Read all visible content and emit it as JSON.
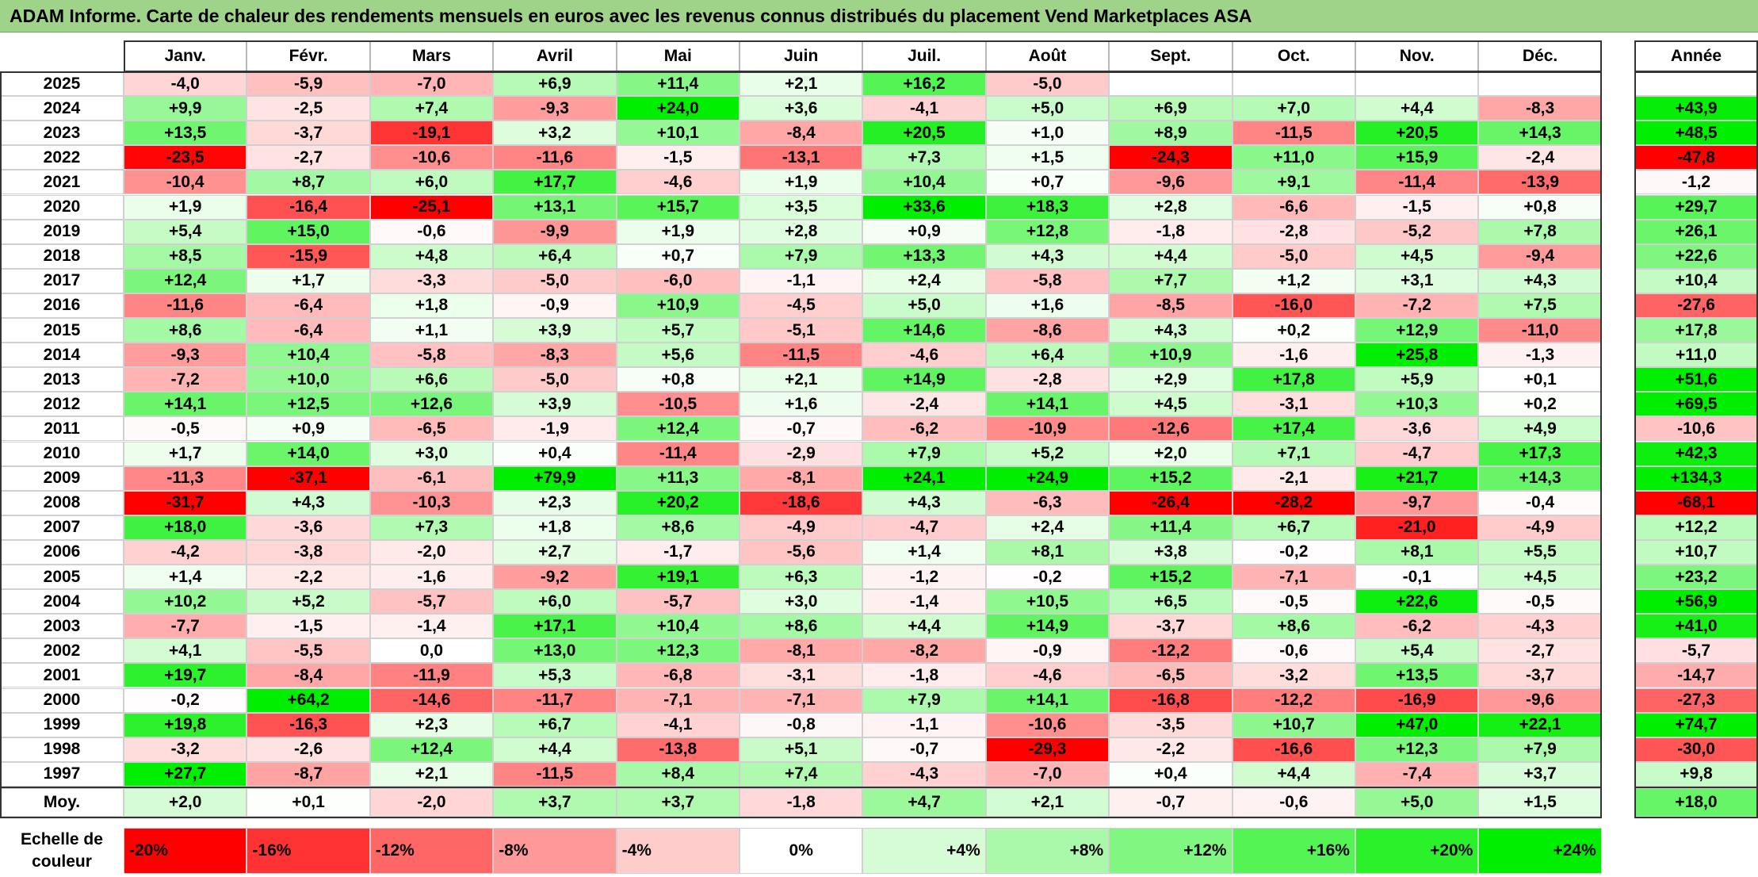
{
  "title": "ADAM Informe. Carte de chaleur des rendements mensuels en euros avec les revenus connus distribués du placement Vend Marketplaces ASA",
  "chart_data": {
    "type": "heatmap",
    "title": "ADAM Informe. Carte de chaleur des rendements mensuels en euros avec les revenus connus distribués du placement Vend Marketplaces ASA",
    "months": [
      "Janv.",
      "Févr.",
      "Mars",
      "Avril",
      "Mai",
      "Juin",
      "Juil.",
      "Août",
      "Sept.",
      "Oct.",
      "Nov.",
      "Déc."
    ],
    "year_column_label": "Année",
    "rows": [
      {
        "year": "2025",
        "values": [
          "-4,0",
          "-5,9",
          "-7,0",
          "+6,9",
          "+11,4",
          "+2,1",
          "+16,2",
          "-5,0",
          "",
          "",
          "",
          ""
        ],
        "annual": ""
      },
      {
        "year": "2024",
        "values": [
          "+9,9",
          "-2,5",
          "+7,4",
          "-9,3",
          "+24,0",
          "+3,6",
          "-4,1",
          "+5,0",
          "+6,9",
          "+7,0",
          "+4,4",
          "-8,3"
        ],
        "annual": "+43,9"
      },
      {
        "year": "2023",
        "values": [
          "+13,5",
          "-3,7",
          "-19,1",
          "+3,2",
          "+10,1",
          "-8,4",
          "+20,5",
          "+1,0",
          "+8,9",
          "-11,5",
          "+20,5",
          "+14,3"
        ],
        "annual": "+48,5"
      },
      {
        "year": "2022",
        "values": [
          "-23,5",
          "-2,7",
          "-10,6",
          "-11,6",
          "-1,5",
          "-13,1",
          "+7,3",
          "+1,5",
          "-24,3",
          "+11,0",
          "+15,9",
          "-2,4"
        ],
        "annual": "-47,8"
      },
      {
        "year": "2021",
        "values": [
          "-10,4",
          "+8,7",
          "+6,0",
          "+17,7",
          "-4,6",
          "+1,9",
          "+10,4",
          "+0,7",
          "-9,6",
          "+9,1",
          "-11,4",
          "-13,9"
        ],
        "annual": "-1,2"
      },
      {
        "year": "2020",
        "values": [
          "+1,9",
          "-16,4",
          "-25,1",
          "+13,1",
          "+15,7",
          "+3,5",
          "+33,6",
          "+18,3",
          "+2,8",
          "-6,6",
          "-1,5",
          "+0,8"
        ],
        "annual": "+29,7"
      },
      {
        "year": "2019",
        "values": [
          "+5,4",
          "+15,0",
          "-0,6",
          "-9,9",
          "+1,9",
          "+2,8",
          "+0,9",
          "+12,8",
          "-1,8",
          "-2,8",
          "-5,2",
          "+7,8"
        ],
        "annual": "+26,1"
      },
      {
        "year": "2018",
        "values": [
          "+8,5",
          "-15,9",
          "+4,8",
          "+6,4",
          "+0,7",
          "+7,9",
          "+13,3",
          "+4,3",
          "+4,4",
          "-5,0",
          "+4,5",
          "-9,4"
        ],
        "annual": "+22,6"
      },
      {
        "year": "2017",
        "values": [
          "+12,4",
          "+1,7",
          "-3,3",
          "-5,0",
          "-6,0",
          "-1,1",
          "+2,4",
          "-5,8",
          "+7,7",
          "+1,2",
          "+3,1",
          "+4,3"
        ],
        "annual": "+10,4"
      },
      {
        "year": "2016",
        "values": [
          "-11,6",
          "-6,4",
          "+1,8",
          "-0,9",
          "+10,9",
          "-4,5",
          "+5,0",
          "+1,6",
          "-8,5",
          "-16,0",
          "-7,2",
          "+7,5"
        ],
        "annual": "-27,6"
      },
      {
        "year": "2015",
        "values": [
          "+8,6",
          "-6,4",
          "+1,1",
          "+3,9",
          "+5,7",
          "-5,1",
          "+14,6",
          "-8,6",
          "+4,3",
          "+0,2",
          "+12,9",
          "-11,0"
        ],
        "annual": "+17,8"
      },
      {
        "year": "2014",
        "values": [
          "-9,3",
          "+10,4",
          "-5,8",
          "-8,3",
          "+5,6",
          "-11,5",
          "-4,6",
          "+6,4",
          "+10,9",
          "-1,6",
          "+25,8",
          "-1,3"
        ],
        "annual": "+11,0"
      },
      {
        "year": "2013",
        "values": [
          "-7,2",
          "+10,0",
          "+6,6",
          "-5,0",
          "+0,8",
          "+2,1",
          "+14,9",
          "-2,8",
          "+2,9",
          "+17,8",
          "+5,9",
          "+0,1"
        ],
        "annual": "+51,6"
      },
      {
        "year": "2012",
        "values": [
          "+14,1",
          "+12,5",
          "+12,6",
          "+3,9",
          "-10,5",
          "+1,6",
          "-2,4",
          "+14,1",
          "+4,5",
          "-3,1",
          "+10,3",
          "+0,2"
        ],
        "annual": "+69,5"
      },
      {
        "year": "2011",
        "values": [
          "-0,5",
          "+0,9",
          "-6,5",
          "-1,9",
          "+12,4",
          "-0,7",
          "-6,2",
          "-10,9",
          "-12,6",
          "+17,4",
          "-3,6",
          "+4,9"
        ],
        "annual": "-10,6"
      },
      {
        "year": "2010",
        "values": [
          "+1,7",
          "+14,0",
          "+3,0",
          "+0,4",
          "-11,4",
          "-2,9",
          "+7,9",
          "+5,2",
          "+2,0",
          "+7,1",
          "-4,7",
          "+17,3"
        ],
        "annual": "+42,3"
      },
      {
        "year": "2009",
        "values": [
          "-11,3",
          "-37,1",
          "-6,1",
          "+79,9",
          "+11,3",
          "-8,1",
          "+24,1",
          "+24,9",
          "+15,2",
          "-2,1",
          "+21,7",
          "+14,3"
        ],
        "annual": "+134,3"
      },
      {
        "year": "2008",
        "values": [
          "-31,7",
          "+4,3",
          "-10,3",
          "+2,3",
          "+20,2",
          "-18,6",
          "+4,3",
          "-6,3",
          "-26,4",
          "-28,2",
          "-9,7",
          "-0,4"
        ],
        "annual": "-68,1"
      },
      {
        "year": "2007",
        "values": [
          "+18,0",
          "-3,6",
          "+7,3",
          "+1,8",
          "+8,6",
          "-4,9",
          "-4,7",
          "+2,4",
          "+11,4",
          "+6,7",
          "-21,0",
          "-4,9"
        ],
        "annual": "+12,2"
      },
      {
        "year": "2006",
        "values": [
          "-4,2",
          "-3,8",
          "-2,0",
          "+2,7",
          "-1,7",
          "-5,6",
          "+1,4",
          "+8,1",
          "+3,8",
          "-0,2",
          "+8,1",
          "+5,5"
        ],
        "annual": "+10,7"
      },
      {
        "year": "2005",
        "values": [
          "+1,4",
          "-2,2",
          "-1,6",
          "-9,2",
          "+19,1",
          "+6,3",
          "-1,2",
          "-0,2",
          "+15,2",
          "-7,1",
          "-0,1",
          "+4,5"
        ],
        "annual": "+23,2"
      },
      {
        "year": "2004",
        "values": [
          "+10,2",
          "+5,2",
          "-5,7",
          "+6,0",
          "-5,7",
          "+3,0",
          "-1,4",
          "+10,5",
          "+6,5",
          "-0,5",
          "+22,6",
          "-0,5"
        ],
        "annual": "+56,9"
      },
      {
        "year": "2003",
        "values": [
          "-7,7",
          "-1,5",
          "-1,4",
          "+17,1",
          "+10,4",
          "+8,6",
          "+4,4",
          "+14,9",
          "-3,7",
          "+8,6",
          "-6,2",
          "-4,3"
        ],
        "annual": "+41,0"
      },
      {
        "year": "2002",
        "values": [
          "+4,1",
          "-5,5",
          "0,0",
          "+13,0",
          "+12,3",
          "-8,1",
          "-8,2",
          "-0,9",
          "-12,2",
          "-0,6",
          "+5,4",
          "-2,7"
        ],
        "annual": "-5,7"
      },
      {
        "year": "2001",
        "values": [
          "+19,7",
          "-8,4",
          "-11,9",
          "+5,3",
          "-6,8",
          "-3,1",
          "-1,8",
          "-4,6",
          "-6,5",
          "-3,2",
          "+13,5",
          "-3,7"
        ],
        "annual": "-14,7"
      },
      {
        "year": "2000",
        "values": [
          "-0,2",
          "+64,2",
          "-14,6",
          "-11,7",
          "-7,1",
          "-7,1",
          "+7,9",
          "+14,1",
          "-16,8",
          "-12,2",
          "-16,9",
          "-9,6"
        ],
        "annual": "-27,3"
      },
      {
        "year": "1999",
        "values": [
          "+19,8",
          "-16,3",
          "+2,3",
          "+6,7",
          "-4,1",
          "-0,8",
          "-1,1",
          "-10,6",
          "-3,5",
          "+10,7",
          "+47,0",
          "+22,1"
        ],
        "annual": "+74,7"
      },
      {
        "year": "1998",
        "values": [
          "-3,2",
          "-2,6",
          "+12,4",
          "+4,4",
          "-13,8",
          "+5,1",
          "-0,7",
          "-29,3",
          "-2,2",
          "-16,6",
          "+12,3",
          "+7,9"
        ],
        "annual": "-30,0"
      },
      {
        "year": "1997",
        "values": [
          "+27,7",
          "-8,7",
          "+2,1",
          "-11,5",
          "+8,4",
          "+7,4",
          "-4,3",
          "-7,0",
          "+0,4",
          "+4,4",
          "-7,4",
          "+3,7"
        ],
        "annual": "+9,8"
      }
    ],
    "average": {
      "label": "Moy.",
      "values": [
        "+2,0",
        "+0,1",
        "-2,0",
        "+3,7",
        "+3,7",
        "-1,8",
        "+4,7",
        "+2,1",
        "-0,7",
        "-0,6",
        "+5,0",
        "+1,5"
      ],
      "annual": "+18,0"
    },
    "color_scale": {
      "label_line1": "Echelle de",
      "label_line2": "couleur",
      "steps": [
        "-20%",
        "-16%",
        "-12%",
        "-8%",
        "-4%",
        "0%",
        "+4%",
        "+8%",
        "+12%",
        "+16%",
        "+20%",
        "+24%"
      ],
      "negative_color": "#ff0000",
      "neutral_color": "#ffffff",
      "positive_color": "#00ee00"
    }
  }
}
